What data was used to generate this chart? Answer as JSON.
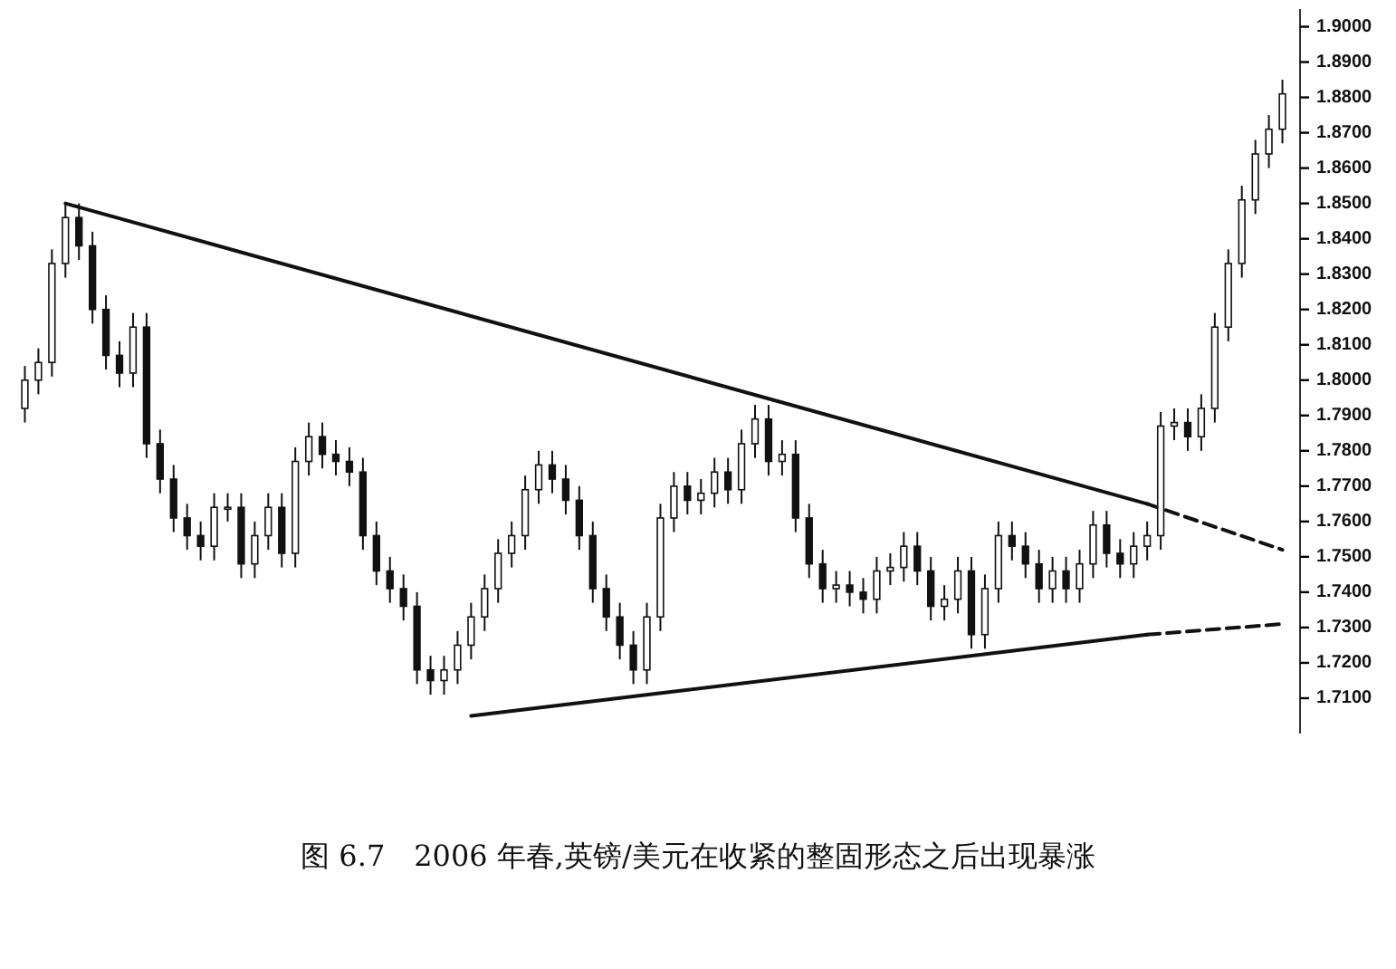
{
  "chart_data": {
    "type": "candlestick",
    "title": "图 6.7　2006 年春,英镑/美元在收紧的整固形态之后出现暴涨",
    "categories": [
      null,
      null,
      null,
      null,
      null,
      null,
      null,
      null,
      null,
      null,
      null,
      null,
      null,
      null,
      null,
      null,
      null,
      null,
      null,
      null,
      null,
      null,
      null,
      null,
      null,
      null,
      null,
      null,
      null,
      null,
      null,
      null,
      null,
      null,
      null,
      null,
      null,
      null,
      null,
      null,
      null,
      null,
      null,
      null,
      null,
      null,
      null,
      null,
      null,
      null,
      null,
      null,
      null,
      null,
      null,
      null,
      null,
      null,
      null,
      null,
      null,
      null,
      null,
      null,
      null,
      null,
      null,
      null,
      null,
      null,
      null,
      null,
      null,
      null,
      null,
      null,
      null,
      null,
      null,
      null,
      null,
      null,
      null,
      null,
      null,
      null,
      null,
      null,
      null,
      null,
      null,
      null,
      null,
      null
    ],
    "ohlc": [
      [
        1.792,
        1.804,
        1.788,
        1.8
      ],
      [
        1.8,
        1.809,
        1.796,
        1.805
      ],
      [
        1.805,
        1.837,
        1.801,
        1.833
      ],
      [
        1.833,
        1.85,
        1.829,
        1.846
      ],
      [
        1.846,
        1.85,
        1.834,
        1.838
      ],
      [
        1.838,
        1.842,
        1.816,
        1.82
      ],
      [
        1.82,
        1.824,
        1.803,
        1.807
      ],
      [
        1.807,
        1.811,
        1.798,
        1.802
      ],
      [
        1.802,
        1.819,
        1.798,
        1.815
      ],
      [
        1.815,
        1.819,
        1.778,
        1.782
      ],
      [
        1.782,
        1.786,
        1.768,
        1.772
      ],
      [
        1.772,
        1.776,
        1.757,
        1.761
      ],
      [
        1.761,
        1.765,
        1.752,
        1.756
      ],
      [
        1.756,
        1.76,
        1.749,
        1.753
      ],
      [
        1.753,
        1.768,
        1.749,
        1.764
      ],
      [
        1.764,
        1.768,
        1.76,
        1.764
      ],
      [
        1.764,
        1.768,
        1.744,
        1.748
      ],
      [
        1.748,
        1.76,
        1.744,
        1.756
      ],
      [
        1.756,
        1.768,
        1.752,
        1.764
      ],
      [
        1.764,
        1.768,
        1.747,
        1.751
      ],
      [
        1.751,
        1.781,
        1.747,
        1.777
      ],
      [
        1.777,
        1.788,
        1.773,
        1.784
      ],
      [
        1.784,
        1.788,
        1.775,
        1.779
      ],
      [
        1.779,
        1.783,
        1.773,
        1.777
      ],
      [
        1.777,
        1.781,
        1.77,
        1.774
      ],
      [
        1.774,
        1.778,
        1.752,
        1.756
      ],
      [
        1.756,
        1.76,
        1.742,
        1.746
      ],
      [
        1.746,
        1.75,
        1.737,
        1.741
      ],
      [
        1.741,
        1.745,
        1.732,
        1.736
      ],
      [
        1.736,
        1.74,
        1.714,
        1.718
      ],
      [
        1.718,
        1.722,
        1.711,
        1.715
      ],
      [
        1.715,
        1.722,
        1.711,
        1.718
      ],
      [
        1.718,
        1.729,
        1.714,
        1.725
      ],
      [
        1.725,
        1.737,
        1.721,
        1.733
      ],
      [
        1.733,
        1.745,
        1.729,
        1.741
      ],
      [
        1.741,
        1.755,
        1.737,
        1.751
      ],
      [
        1.751,
        1.76,
        1.747,
        1.756
      ],
      [
        1.756,
        1.773,
        1.752,
        1.769
      ],
      [
        1.769,
        1.78,
        1.765,
        1.776
      ],
      [
        1.776,
        1.78,
        1.768,
        1.772
      ],
      [
        1.772,
        1.776,
        1.762,
        1.766
      ],
      [
        1.766,
        1.77,
        1.752,
        1.756
      ],
      [
        1.756,
        1.76,
        1.737,
        1.741
      ],
      [
        1.741,
        1.745,
        1.729,
        1.733
      ],
      [
        1.733,
        1.737,
        1.721,
        1.725
      ],
      [
        1.725,
        1.729,
        1.714,
        1.718
      ],
      [
        1.718,
        1.737,
        1.714,
        1.733
      ],
      [
        1.733,
        1.765,
        1.729,
        1.761
      ],
      [
        1.761,
        1.774,
        1.757,
        1.77
      ],
      [
        1.77,
        1.774,
        1.762,
        1.766
      ],
      [
        1.766,
        1.772,
        1.762,
        1.768
      ],
      [
        1.768,
        1.778,
        1.764,
        1.774
      ],
      [
        1.774,
        1.778,
        1.765,
        1.769
      ],
      [
        1.769,
        1.786,
        1.765,
        1.782
      ],
      [
        1.782,
        1.793,
        1.778,
        1.789
      ],
      [
        1.789,
        1.793,
        1.773,
        1.777
      ],
      [
        1.777,
        1.783,
        1.773,
        1.779
      ],
      [
        1.779,
        1.783,
        1.757,
        1.761
      ],
      [
        1.761,
        1.765,
        1.744,
        1.748
      ],
      [
        1.748,
        1.752,
        1.737,
        1.741
      ],
      [
        1.741,
        1.746,
        1.737,
        1.742
      ],
      [
        1.742,
        1.746,
        1.736,
        1.74
      ],
      [
        1.74,
        1.744,
        1.734,
        1.738
      ],
      [
        1.738,
        1.75,
        1.734,
        1.746
      ],
      [
        1.746,
        1.751,
        1.742,
        1.747
      ],
      [
        1.747,
        1.757,
        1.743,
        1.753
      ],
      [
        1.753,
        1.757,
        1.742,
        1.746
      ],
      [
        1.746,
        1.75,
        1.732,
        1.736
      ],
      [
        1.736,
        1.742,
        1.732,
        1.738
      ],
      [
        1.738,
        1.75,
        1.734,
        1.746
      ],
      [
        1.746,
        1.75,
        1.724,
        1.728
      ],
      [
        1.728,
        1.745,
        1.724,
        1.741
      ],
      [
        1.741,
        1.76,
        1.737,
        1.756
      ],
      [
        1.756,
        1.76,
        1.749,
        1.753
      ],
      [
        1.753,
        1.757,
        1.744,
        1.748
      ],
      [
        1.748,
        1.752,
        1.737,
        1.741
      ],
      [
        1.741,
        1.75,
        1.737,
        1.746
      ],
      [
        1.746,
        1.75,
        1.737,
        1.741
      ],
      [
        1.741,
        1.752,
        1.737,
        1.748
      ],
      [
        1.748,
        1.763,
        1.744,
        1.759
      ],
      [
        1.759,
        1.763,
        1.747,
        1.751
      ],
      [
        1.751,
        1.755,
        1.744,
        1.748
      ],
      [
        1.748,
        1.757,
        1.744,
        1.753
      ],
      [
        1.753,
        1.76,
        1.749,
        1.756
      ],
      [
        1.756,
        1.791,
        1.752,
        1.787
      ],
      [
        1.787,
        1.792,
        1.783,
        1.788
      ],
      [
        1.788,
        1.792,
        1.78,
        1.784
      ],
      [
        1.784,
        1.796,
        1.78,
        1.792
      ],
      [
        1.792,
        1.819,
        1.788,
        1.815
      ],
      [
        1.815,
        1.837,
        1.811,
        1.833
      ],
      [
        1.833,
        1.855,
        1.829,
        1.851
      ],
      [
        1.851,
        1.868,
        1.847,
        1.864
      ],
      [
        1.864,
        1.875,
        1.86,
        1.871
      ],
      [
        1.871,
        1.885,
        1.867,
        1.881
      ]
    ],
    "color": "#111111",
    "series": [
      {
        "type": "line",
        "values": [
          null,
          null,
          null,
          1.85,
          null,
          null,
          null,
          null,
          null,
          null,
          null,
          null,
          null,
          null,
          null,
          null,
          null,
          null,
          null,
          null,
          null,
          null,
          null,
          null,
          null,
          null,
          null,
          null,
          null,
          null,
          null,
          null,
          null,
          null,
          null,
          null,
          null,
          null,
          null,
          null,
          null,
          null,
          null,
          null,
          null,
          null,
          null,
          null,
          null,
          null,
          null,
          null,
          null,
          null,
          null,
          null,
          null,
          null,
          null,
          null,
          null,
          null,
          null,
          null,
          null,
          null,
          null,
          null,
          null,
          null,
          null,
          null,
          null,
          null,
          null,
          null,
          null,
          null,
          null,
          null,
          null,
          null,
          null,
          1.765,
          null,
          null,
          null,
          null,
          null,
          null,
          null,
          null,
          null,
          null
        ],
        "color": "#111111",
        "line_style": "solid"
      },
      {
        "type": "line",
        "values": [
          null,
          null,
          null,
          null,
          null,
          null,
          null,
          null,
          null,
          null,
          null,
          null,
          null,
          null,
          null,
          null,
          null,
          null,
          null,
          null,
          null,
          null,
          null,
          null,
          null,
          null,
          null,
          null,
          null,
          null,
          null,
          null,
          null,
          null,
          null,
          null,
          null,
          null,
          null,
          null,
          null,
          null,
          null,
          null,
          null,
          null,
          null,
          null,
          null,
          null,
          null,
          null,
          null,
          null,
          null,
          null,
          null,
          null,
          null,
          null,
          null,
          null,
          null,
          null,
          null,
          null,
          null,
          null,
          null,
          null,
          null,
          null,
          null,
          null,
          null,
          null,
          null,
          null,
          null,
          null,
          null,
          null,
          null,
          1.765,
          null,
          null,
          null,
          null,
          null,
          null,
          null,
          null,
          null,
          1.752
        ],
        "color": "#111111",
        "line_style": "dashed"
      },
      {
        "type": "line",
        "values": [
          null,
          null,
          null,
          null,
          null,
          null,
          null,
          null,
          null,
          null,
          null,
          null,
          null,
          null,
          null,
          null,
          null,
          null,
          null,
          null,
          null,
          null,
          null,
          null,
          null,
          null,
          null,
          null,
          null,
          null,
          null,
          null,
          null,
          1.705,
          null,
          null,
          null,
          null,
          null,
          null,
          null,
          null,
          null,
          null,
          null,
          null,
          null,
          null,
          null,
          null,
          null,
          null,
          null,
          null,
          null,
          null,
          null,
          null,
          null,
          null,
          null,
          null,
          null,
          null,
          null,
          null,
          null,
          null,
          null,
          null,
          null,
          null,
          null,
          null,
          null,
          null,
          null,
          null,
          null,
          null,
          null,
          null,
          null,
          1.728,
          null,
          null,
          null,
          null,
          null,
          null,
          null,
          null,
          null,
          null
        ],
        "color": "#111111",
        "line_style": "solid"
      },
      {
        "type": "line",
        "values": [
          null,
          null,
          null,
          null,
          null,
          null,
          null,
          null,
          null,
          null,
          null,
          null,
          null,
          null,
          null,
          null,
          null,
          null,
          null,
          null,
          null,
          null,
          null,
          null,
          null,
          null,
          null,
          null,
          null,
          null,
          null,
          null,
          null,
          null,
          null,
          null,
          null,
          null,
          null,
          null,
          null,
          null,
          null,
          null,
          null,
          null,
          null,
          null,
          null,
          null,
          null,
          null,
          null,
          null,
          null,
          null,
          null,
          null,
          null,
          null,
          null,
          null,
          null,
          null,
          null,
          null,
          null,
          null,
          null,
          null,
          null,
          null,
          null,
          null,
          null,
          null,
          null,
          null,
          null,
          null,
          null,
          null,
          null,
          1.728,
          null,
          null,
          null,
          null,
          null,
          null,
          null,
          null,
          null,
          1.731
        ],
        "color": "#111111",
        "line_style": "dashed"
      }
    ],
    "ylim": [
      1.7,
      1.905
    ],
    "yticks": [
      {
        "value": 1.71,
        "label": "1.7100"
      },
      {
        "value": 1.72,
        "label": "1.7200"
      },
      {
        "value": 1.73,
        "label": "1.7300"
      },
      {
        "value": 1.74,
        "label": "1.7400"
      },
      {
        "value": 1.75,
        "label": "1.7500"
      },
      {
        "value": 1.76,
        "label": "1.7600"
      },
      {
        "value": 1.77,
        "label": "1.7700"
      },
      {
        "value": 1.78,
        "label": "1.7800"
      },
      {
        "value": 1.79,
        "label": "1.7900"
      },
      {
        "value": 1.8,
        "label": "1.8000"
      },
      {
        "value": 1.81,
        "label": "1.8100"
      },
      {
        "value": 1.82,
        "label": "1.8200"
      },
      {
        "value": 1.83,
        "label": "1.8300"
      },
      {
        "value": 1.84,
        "label": "1.8400"
      },
      {
        "value": 1.85,
        "label": "1.8500"
      },
      {
        "value": 1.86,
        "label": "1.8600"
      },
      {
        "value": 1.87,
        "label": "1.8700"
      },
      {
        "value": 1.88,
        "label": "1.8800"
      },
      {
        "value": 1.89,
        "label": "1.8900"
      },
      {
        "value": 1.9,
        "label": "1.9000"
      }
    ],
    "tick_labels": "y"
  }
}
